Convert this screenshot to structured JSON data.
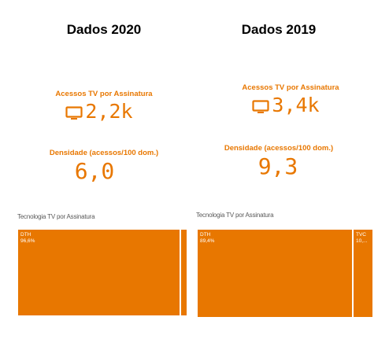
{
  "panels": [
    {
      "title": "Dados 2020",
      "kpi_access": {
        "label": "Acessos TV por Assinatura",
        "value": "2,2k",
        "icon": "tv-icon"
      },
      "kpi_density": {
        "label": "Densidade (acessos/100 dom.)",
        "value": "6,0"
      },
      "treemap": {
        "title": "Tecnologia TV por Assinatura",
        "tiles": [
          {
            "label": "DTH",
            "value": "96,6%",
            "share": 0.966
          },
          {
            "label": "",
            "value": "",
            "share": 0.034
          }
        ]
      }
    },
    {
      "title": "Dados 2019",
      "kpi_access": {
        "label": "Acessos TV por Assinatura",
        "value": "3,4k",
        "icon": "tv-icon"
      },
      "kpi_density": {
        "label": "Densidade (acessos/100 dom.)",
        "value": "9,3"
      },
      "treemap": {
        "title": "Tecnologia TV por Assinatura",
        "tiles": [
          {
            "label": "DTH",
            "value": "89,4%",
            "share": 0.894
          },
          {
            "label": "TVC",
            "value": "10,...",
            "share": 0.106
          }
        ]
      }
    }
  ],
  "colors": {
    "accent": "#e87700",
    "title": "#000000",
    "section": "#595959"
  }
}
